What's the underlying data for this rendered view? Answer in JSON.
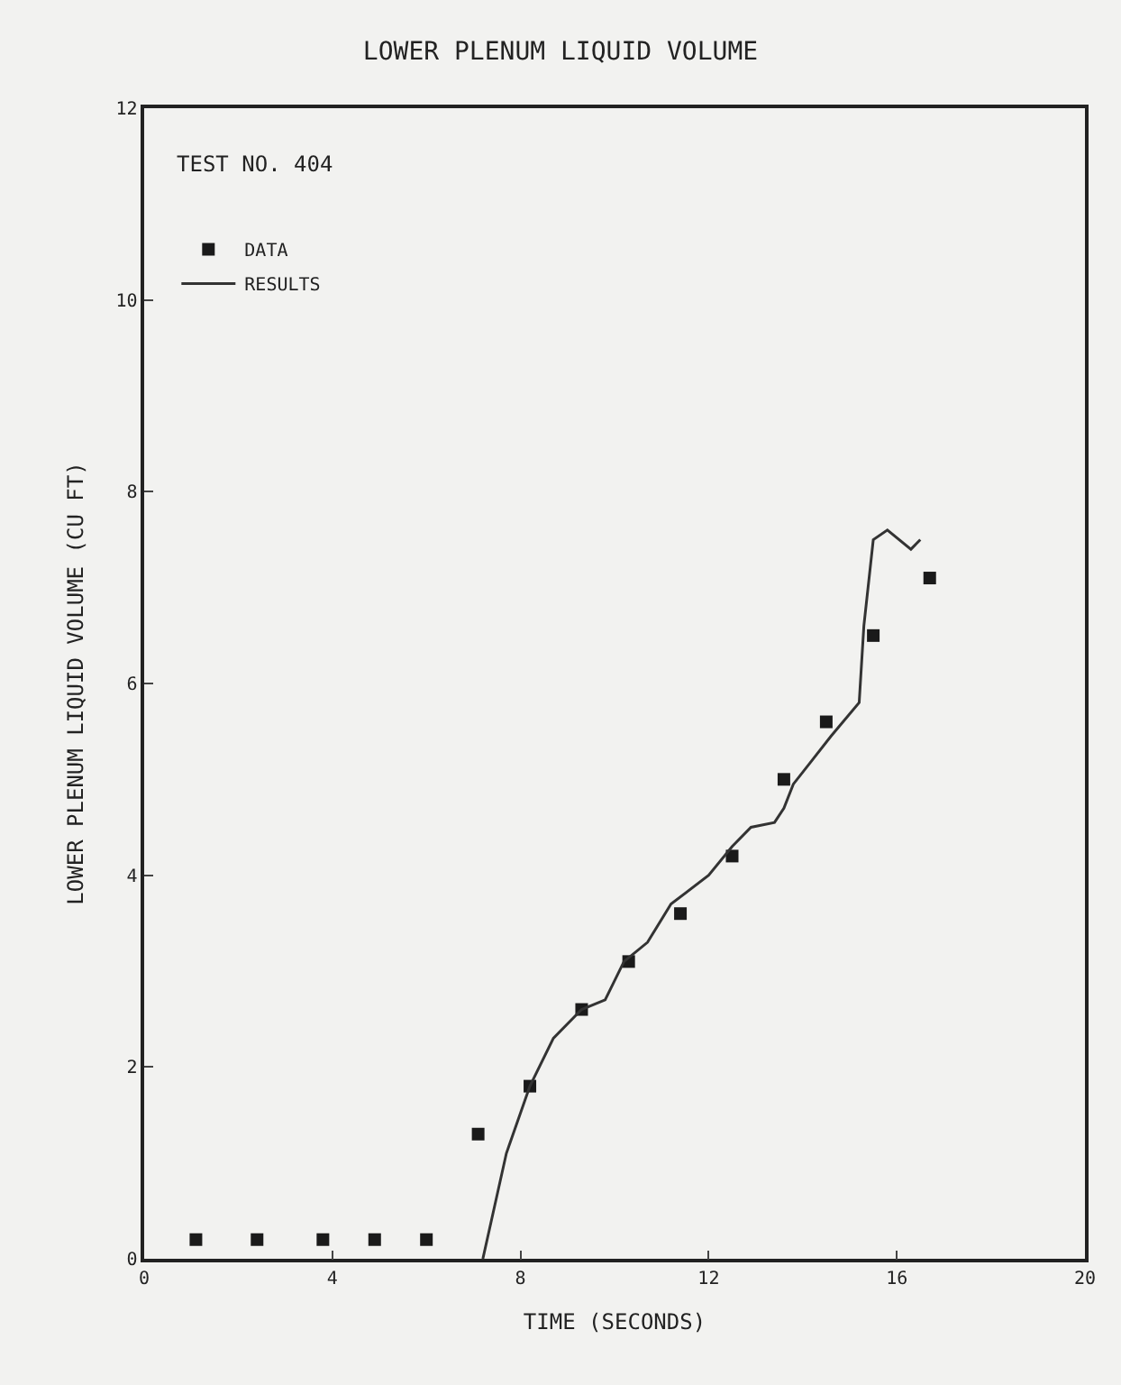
{
  "chart_data": {
    "type": "scatter",
    "title": "LOWER PLENUM LIQUID VOLUME",
    "xlabel": "TIME (SECONDS)",
    "ylabel": "LOWER PLENUM LIQUID VOLUME (CU FT)",
    "annotations": [
      "TEST NO. 404"
    ],
    "xlim": [
      0,
      20
    ],
    "xticks": [
      0,
      4,
      8,
      12,
      16,
      20
    ],
    "ylim": [
      0,
      12
    ],
    "yticks": [
      0,
      2,
      4,
      6,
      8,
      10,
      12
    ],
    "grid": false,
    "legend": "top left",
    "series": [
      {
        "name": "DATA",
        "marker": "square",
        "color": "#1a1a1a",
        "x": [
          1.1,
          2.4,
          3.8,
          4.9,
          6.0,
          7.1,
          8.2,
          9.3,
          10.3,
          11.4,
          12.5,
          13.6,
          14.5,
          15.5,
          16.7
        ],
        "values": [
          0.2,
          0.2,
          0.2,
          0.2,
          0.2,
          1.3,
          1.8,
          2.6,
          3.1,
          3.6,
          4.2,
          5.0,
          5.6,
          6.5,
          7.1
        ]
      },
      {
        "name": "RESULTS",
        "type": "line",
        "marker": "none",
        "line_style": "solid",
        "color": "#333333",
        "x": [
          7.2,
          7.7,
          8.2,
          8.7,
          9.3,
          9.8,
          10.2,
          10.7,
          11.2,
          12.0,
          12.5,
          12.9,
          13.4,
          13.6,
          13.8,
          14.2,
          14.6,
          15.2,
          15.3,
          15.5,
          15.8,
          16.3,
          16.5
        ],
        "values": [
          0,
          1.1,
          1.8,
          2.3,
          2.6,
          2.7,
          3.1,
          3.3,
          3.7,
          4.0,
          4.3,
          4.5,
          4.55,
          4.7,
          4.95,
          5.2,
          5.45,
          5.8,
          6.6,
          7.5,
          7.6,
          7.4,
          7.5
        ]
      }
    ]
  }
}
